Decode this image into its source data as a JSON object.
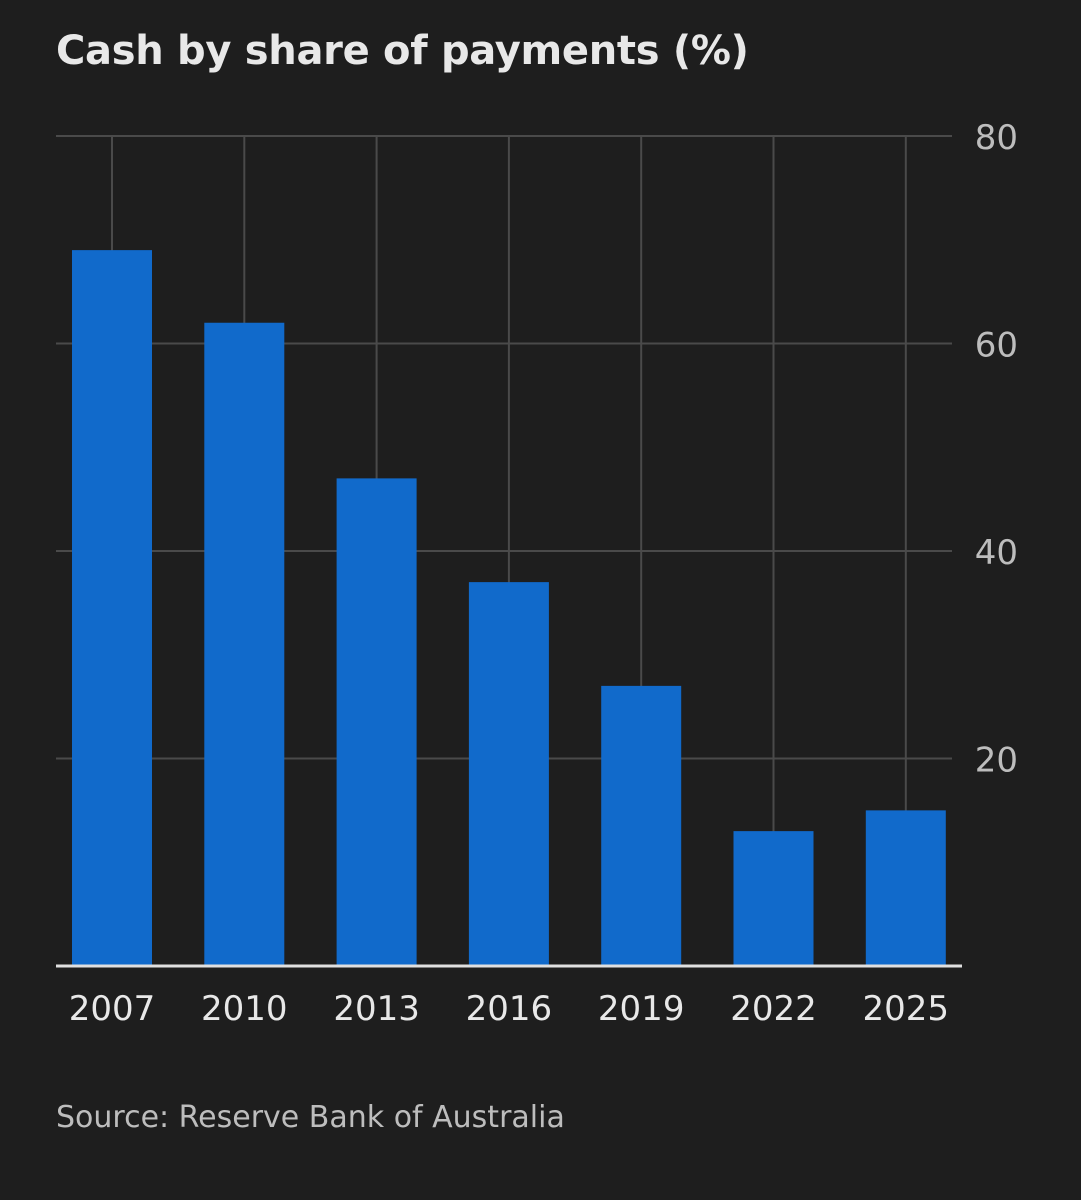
{
  "chart_data": {
    "type": "bar",
    "title": "Cash by share of payments (%)",
    "categories": [
      "2007",
      "2010",
      "2013",
      "2016",
      "2019",
      "2022",
      "2025"
    ],
    "values": [
      69,
      62,
      47,
      37,
      27,
      13,
      15
    ],
    "ylim": [
      0,
      80
    ],
    "yticks": [
      20,
      40,
      60,
      80
    ],
    "y_axis_position": "right",
    "grid": true,
    "source": "Source: Reserve Bank of Australia"
  },
  "colors": {
    "background": "#1e1e1e",
    "bar": "#116acb",
    "grid": "#4a4a4a",
    "axis": "#e0e0e0",
    "text": "#e8e8e8",
    "tick_text": "#bdbdbd"
  }
}
